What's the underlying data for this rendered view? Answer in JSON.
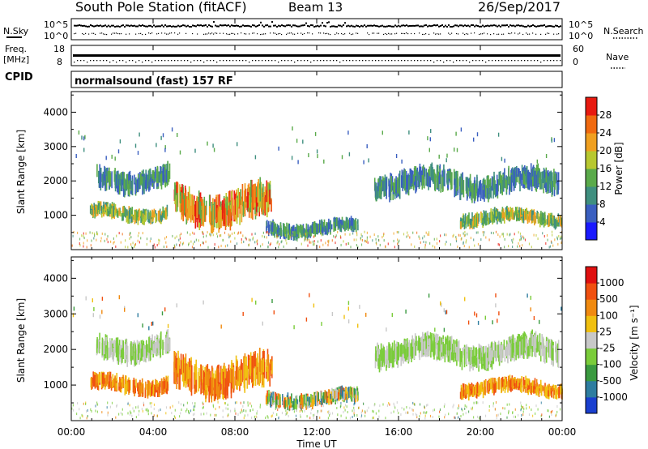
{
  "header": {
    "station": "South Pole Station (fitACF)",
    "beam": "Beam 13",
    "date": "26/Sep/2017"
  },
  "summary": {
    "nsky_label": "N.Sky",
    "nsky_top": "10^5",
    "nsky_bottom": "10^0",
    "nsearch_label": "N.Search",
    "nsearch_top": "10^5",
    "nsearch_bottom": "10^0",
    "freq_label": "Freq.",
    "freq_unit": "[MHz]",
    "freq_top": "18",
    "freq_bottom": "8",
    "nave_label": "Nave",
    "nave_top": "60",
    "nave_bottom": "0",
    "cpid_label": "CPID",
    "cpid_text": "normalsound (fast) 157 RF"
  },
  "chart_data": [
    {
      "type": "heatmap",
      "name": "power",
      "ylabel": "Slant Range [km]",
      "ylim": [
        0,
        4600
      ],
      "yticks": [
        "1000",
        "2000",
        "3000",
        "4000"
      ],
      "xlim": [
        0,
        24
      ],
      "colorbar_label": "Power [dB]",
      "colorbar_ticks": [
        "4",
        "8",
        "12",
        "16",
        "20",
        "24",
        "28"
      ],
      "colorbar_colors": [
        "#1a1aff",
        "#3a5fc0",
        "#3f8f7f",
        "#5aaa4a",
        "#b8c830",
        "#f0a020",
        "#f06a10",
        "#e81a10"
      ],
      "regions": [
        {
          "x": [
            0.9,
            4.7
          ],
          "y": [
            780,
            1350
          ],
          "level": "mid"
        },
        {
          "x": [
            1.2,
            4.8
          ],
          "y": [
            1650,
            2500
          ],
          "level": "low"
        },
        {
          "x": [
            5.0,
            9.8
          ],
          "y": [
            650,
            1900
          ],
          "level": "high"
        },
        {
          "x": [
            9.5,
            14.0
          ],
          "y": [
            350,
            900
          ],
          "level": "low"
        },
        {
          "x": [
            14.8,
            23.8
          ],
          "y": [
            1500,
            2400
          ],
          "level": "low"
        },
        {
          "x": [
            19.0,
            24.0
          ],
          "y": [
            650,
            1200
          ],
          "level": "mid"
        }
      ]
    },
    {
      "type": "heatmap",
      "name": "velocity",
      "ylabel": "Slant Range [km]",
      "ylim": [
        0,
        4600
      ],
      "yticks": [
        "1000",
        "2000",
        "3000",
        "4000"
      ],
      "xlim": [
        0,
        24
      ],
      "xticks": [
        "00:00",
        "04:00",
        "08:00",
        "12:00",
        "16:00",
        "20:00",
        "00:00"
      ],
      "xlabel": "Time UT",
      "colorbar_label": "Velocity [m s⁻¹]",
      "colorbar_ticks": [
        "1000",
        "500",
        "100",
        "25",
        "-25",
        "-100",
        "-500",
        "-1000"
      ],
      "colorbar_colors": [
        "#1a3fcf",
        "#2e7da0",
        "#3a9a40",
        "#7acc3a",
        "#c8c8c8",
        "#f0c010",
        "#f08a10",
        "#f05010",
        "#e01010"
      ],
      "regions": [
        {
          "x": [
            0.9,
            4.7
          ],
          "y": [
            700,
            1350
          ],
          "level": "neg"
        },
        {
          "x": [
            1.2,
            4.8
          ],
          "y": [
            1650,
            2500
          ],
          "level": "zero"
        },
        {
          "x": [
            5.0,
            9.8
          ],
          "y": [
            650,
            1900
          ],
          "level": "neg"
        },
        {
          "x": [
            9.5,
            14.0
          ],
          "y": [
            350,
            900
          ],
          "level": "mixed"
        },
        {
          "x": [
            14.8,
            23.8
          ],
          "y": [
            1500,
            2400
          ],
          "level": "zero"
        },
        {
          "x": [
            19.0,
            24.0
          ],
          "y": [
            650,
            1200
          ],
          "level": "neg"
        }
      ]
    }
  ]
}
